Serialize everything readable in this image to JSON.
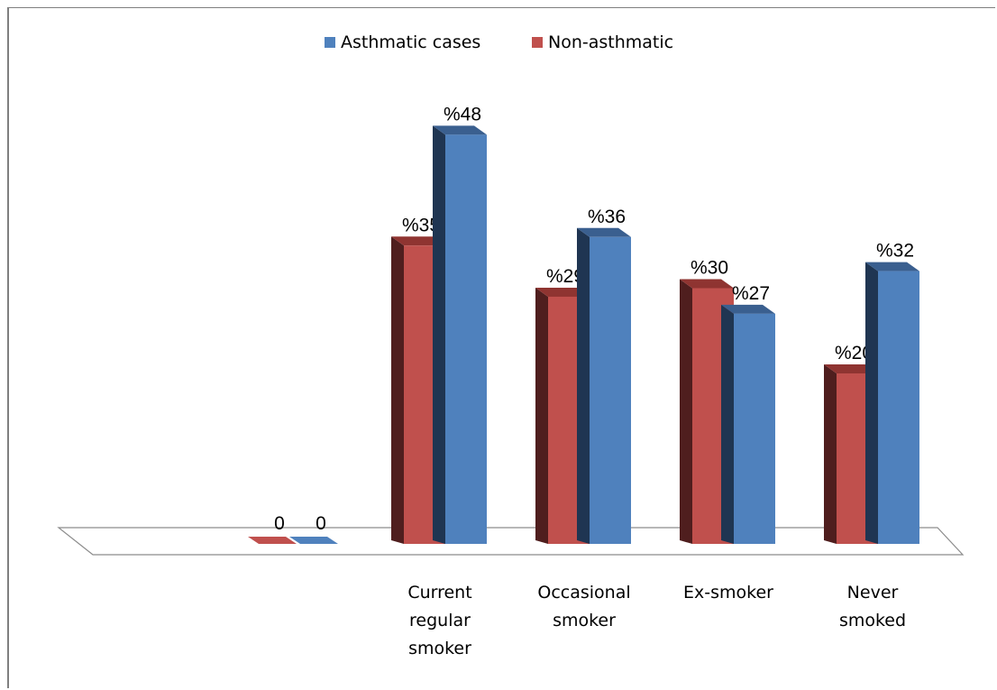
{
  "chart_data": {
    "type": "bar",
    "categories": [
      "",
      "Current regular smoker",
      "Occasional smoker",
      "Ex-smoker",
      "Never smoked"
    ],
    "category_lines": [
      [],
      [
        "Current",
        "regular",
        "smoker"
      ],
      [
        "Occasional",
        "smoker"
      ],
      [
        "Ex-smoker"
      ],
      [
        "Never",
        "smoked"
      ]
    ],
    "series": [
      {
        "name": "Non-asthmatic",
        "values": [
          0,
          35,
          29,
          30,
          20
        ],
        "labels": [
          "0",
          "%35",
          "%29",
          "%30",
          "%20"
        ],
        "color": "#c0504d",
        "side": "#4f1e1e",
        "top": "#8f3431"
      },
      {
        "name": "Asthmatic cases",
        "values": [
          0,
          48,
          36,
          27,
          32
        ],
        "labels": [
          "0",
          "%48",
          "%36",
          "%27",
          "%32"
        ],
        "color": "#4f81bd",
        "side": "#1f3552",
        "top": "#3a5f8f"
      }
    ],
    "legend": [
      {
        "name": "Asthmatic cases",
        "color": "#4f81bd"
      },
      {
        "name": "Non-asthmatic",
        "color": "#c0504d"
      }
    ],
    "legend_position": "top",
    "grid": false,
    "ylim": [
      0,
      50
    ]
  }
}
